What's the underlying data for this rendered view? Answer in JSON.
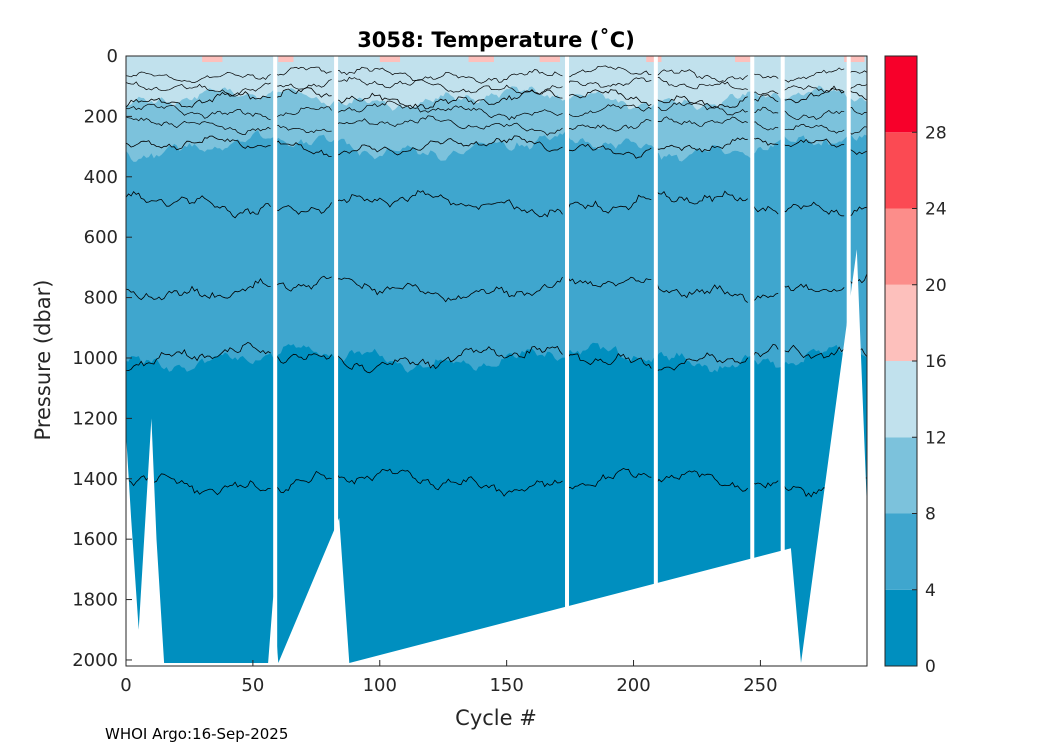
{
  "footer": "WHOI Argo:16-Sep-2025",
  "chart_data": {
    "type": "heatmap",
    "title": "3058:  Temperature (˚C)",
    "xlabel": "Cycle #",
    "ylabel": "Pressure (dbar)",
    "xlim": [
      0,
      292
    ],
    "ylim": [
      2020,
      0
    ],
    "xticks": [
      0,
      50,
      100,
      150,
      200,
      250
    ],
    "yticks": [
      0,
      200,
      400,
      600,
      800,
      1000,
      1200,
      1400,
      1600,
      1800,
      2000
    ],
    "colorbar": {
      "levels": [
        0,
        4,
        8,
        12,
        16,
        20,
        24,
        28,
        32
      ],
      "tick_labels": [
        "0",
        "4",
        "8",
        "12",
        "16",
        "20",
        "24",
        "28"
      ],
      "colors": [
        "#008fbf",
        "#3fa6ce",
        "#7cc2dc",
        "#c1e1ed",
        "#fdc0bc",
        "#fc8d8a",
        "#fb4a53",
        "#f7002a"
      ]
    },
    "isotherm_depths": [
      {
        "temp_c": 4,
        "mean_depth_dbar": 1000
      },
      {
        "temp_c": 5,
        "mean_depth_dbar": 770
      },
      {
        "temp_c": 6,
        "mean_depth_dbar": 490
      },
      {
        "temp_c": 8,
        "mean_depth_dbar": 300
      },
      {
        "temp_c": 12,
        "mean_depth_dbar": 140
      }
    ],
    "deep_isotherm": {
      "temp_c": 3,
      "mean_depth_dbar": 1410
    },
    "data_gaps_cycles": [
      58,
      82,
      173,
      208,
      246,
      258,
      284
    ],
    "max_profile_depth_dbar": 2010
  }
}
